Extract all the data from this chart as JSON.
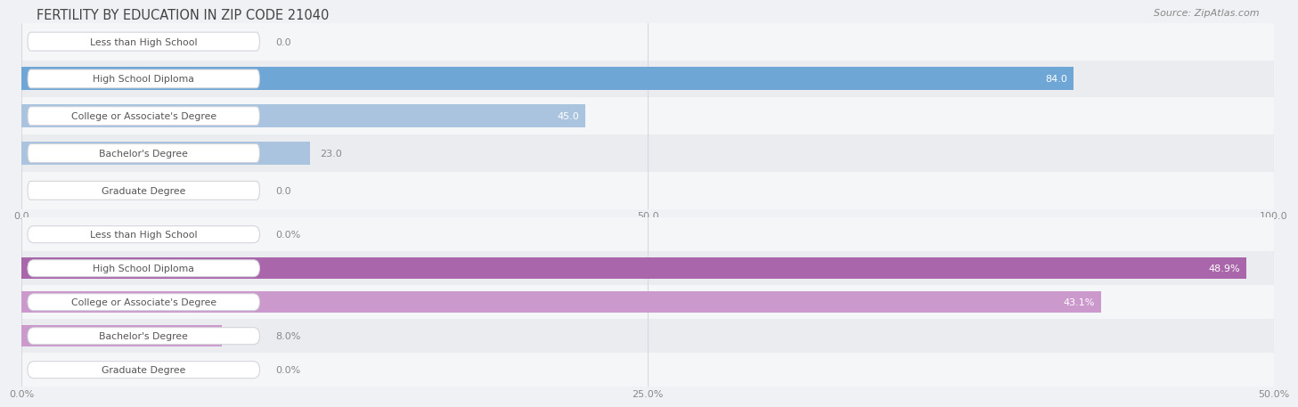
{
  "title": "FERTILITY BY EDUCATION IN ZIP CODE 21040",
  "source": "Source: ZipAtlas.com",
  "chart1": {
    "categories": [
      "Less than High School",
      "High School Diploma",
      "College or Associate's Degree",
      "Bachelor's Degree",
      "Graduate Degree"
    ],
    "values": [
      0.0,
      84.0,
      45.0,
      23.0,
      0.0
    ],
    "xlim": [
      0,
      100
    ],
    "xticks": [
      0.0,
      50.0,
      100.0
    ],
    "xtick_labels": [
      "0.0",
      "50.0",
      "100.0"
    ],
    "bar_color_normal": "#aac4e0",
    "bar_color_max": "#6ea6d6",
    "bg_row_odd": "#f5f6f8",
    "bg_row_even": "#eaecf0"
  },
  "chart2": {
    "categories": [
      "Less than High School",
      "High School Diploma",
      "College or Associate's Degree",
      "Bachelor's Degree",
      "Graduate Degree"
    ],
    "values": [
      0.0,
      48.9,
      43.1,
      8.0,
      0.0
    ],
    "xlim": [
      0,
      50
    ],
    "xticks": [
      0.0,
      25.0,
      50.0
    ],
    "xtick_labels": [
      "0.0%",
      "25.0%",
      "50.0%"
    ],
    "bar_color_normal": "#cc99cc",
    "bar_color_max": "#aa66aa",
    "bg_row_odd": "#f5f6f8",
    "bg_row_even": "#eaecf0"
  },
  "fig_bg": "#f0f1f4",
  "label_box_bg": "#ffffff",
  "label_box_edge": "#d0d0d8",
  "label_text_color": "#555555",
  "value_color_inside": "#ffffff",
  "value_color_outside": "#888888",
  "grid_color": "#d8d8de",
  "title_color": "#444444",
  "source_color": "#888888",
  "tick_color": "#888888",
  "title_fontsize": 10.5,
  "label_fontsize": 7.8,
  "value_fontsize": 8.0,
  "tick_fontsize": 8.0
}
